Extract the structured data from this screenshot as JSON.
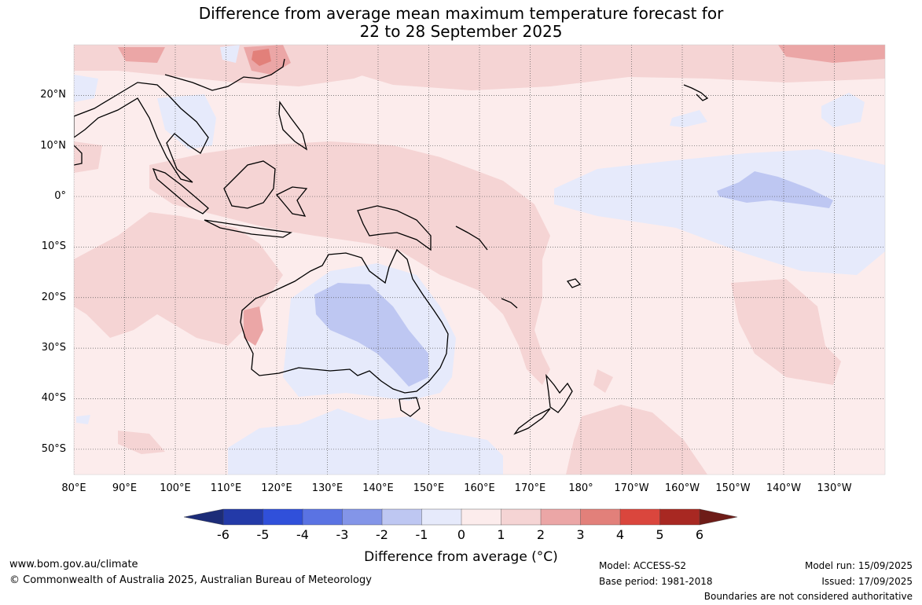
{
  "title": {
    "line1": "Difference from average mean maximum temperature forecast for",
    "line2": "22 to 28 September 2025"
  },
  "map": {
    "extent": {
      "lon_min": 80,
      "lon_max": 240,
      "lat_min": -55,
      "lat_max": 30
    },
    "lat_ticks": [
      {
        "lat": 20,
        "label": "20°N"
      },
      {
        "lat": 10,
        "label": "10°N"
      },
      {
        "lat": 0,
        "label": "0°"
      },
      {
        "lat": -10,
        "label": "10°S"
      },
      {
        "lat": -20,
        "label": "20°S"
      },
      {
        "lat": -30,
        "label": "30°S"
      },
      {
        "lat": -40,
        "label": "40°S"
      },
      {
        "lat": -50,
        "label": "50°S"
      }
    ],
    "lon_ticks": [
      {
        "lon": 80,
        "label": "80°E"
      },
      {
        "lon": 90,
        "label": "90°E"
      },
      {
        "lon": 100,
        "label": "100°E"
      },
      {
        "lon": 110,
        "label": "110°E"
      },
      {
        "lon": 120,
        "label": "120°E"
      },
      {
        "lon": 130,
        "label": "130°E"
      },
      {
        "lon": 140,
        "label": "140°E"
      },
      {
        "lon": 150,
        "label": "150°E"
      },
      {
        "lon": 160,
        "label": "160°E"
      },
      {
        "lon": 170,
        "label": "170°E"
      },
      {
        "lon": 180,
        "label": "180°"
      },
      {
        "lon": 190,
        "label": "170°W"
      },
      {
        "lon": 200,
        "label": "160°W"
      },
      {
        "lon": 210,
        "label": "150°W"
      },
      {
        "lon": 220,
        "label": "140°W"
      },
      {
        "lon": 230,
        "label": "130°W"
      }
    ],
    "ocean_color": "#fcecec",
    "coast_color": "#000000"
  },
  "colorbar": {
    "ticks": [
      "-6",
      "-5",
      "-4",
      "-3",
      "-2",
      "-1",
      "0",
      "1",
      "2",
      "3",
      "4",
      "5",
      "6"
    ],
    "colors": [
      "#233aa8",
      "#3050da",
      "#5a73e3",
      "#8395e8",
      "#bec7f2",
      "#e6eafb",
      "#fcecec",
      "#f5d4d4",
      "#eba6a6",
      "#e2807a",
      "#da463d",
      "#a82822"
    ],
    "under_color": "#1c2c78",
    "over_color": "#6e1c18",
    "label": "Difference from average (°C)"
  },
  "footer": {
    "url": "www.bom.gov.au/climate",
    "copyright": "© Commonwealth of Australia 2025, Australian Bureau of Meteorology",
    "model": "Model: ACCESS-S2",
    "base_period": "Base period: 1981-2018",
    "model_run": "Model run: 15/09/2025",
    "issued": "Issued: 17/09/2025",
    "disclaimer": "Boundaries are not considered authoritative"
  }
}
